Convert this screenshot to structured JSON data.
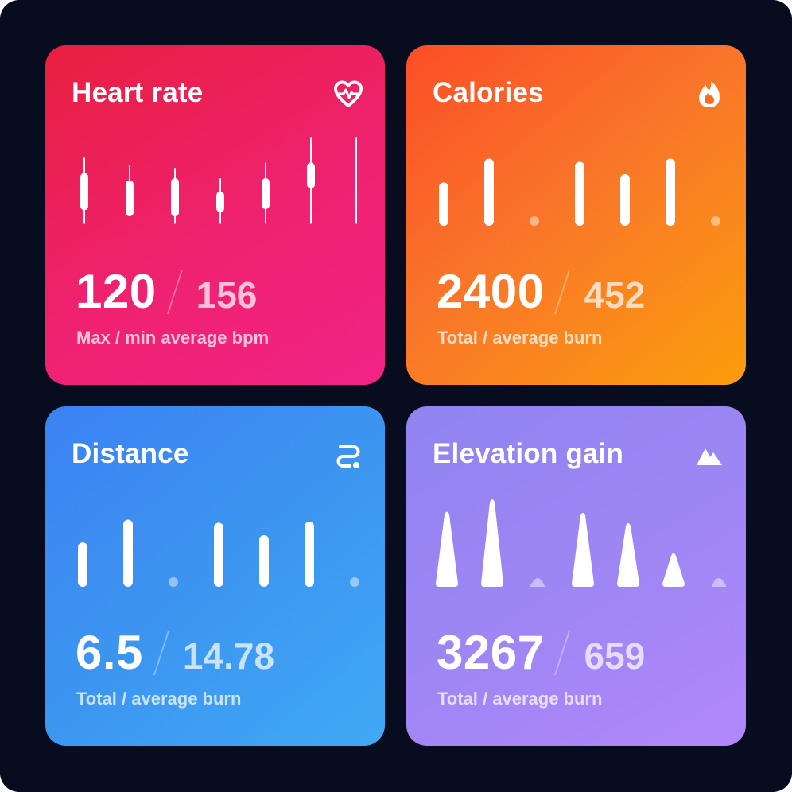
{
  "cards": [
    {
      "id": "heart",
      "title": "Heart rate",
      "icon": "heart-pulse-icon",
      "primary": "120",
      "secondary": "156",
      "label": "Max / min average bpm",
      "chart_type": "range",
      "ranges": [
        [
          0.2,
          0.82
        ],
        [
          0.27,
          0.72
        ],
        [
          0.3,
          0.82
        ],
        [
          0.4,
          0.82
        ],
        [
          0.25,
          0.82
        ],
        [
          0.0,
          0.82
        ],
        [
          0.0,
          0.82
        ]
      ],
      "boxes": [
        [
          0.35,
          0.71
        ],
        [
          0.42,
          0.77
        ],
        [
          0.4,
          0.77
        ],
        [
          0.53,
          0.73
        ],
        [
          0.4,
          0.7
        ],
        [
          0.25,
          0.5
        ],
        [
          null,
          null
        ]
      ]
    },
    {
      "id": "cal",
      "title": "Calories",
      "icon": "flame-icon",
      "primary": "2400",
      "secondary": "452",
      "label": "Total / average burn",
      "chart_type": "bar",
      "values": [
        0.42,
        0.65,
        0,
        0.62,
        0.5,
        0.65,
        0
      ]
    },
    {
      "id": "dist",
      "title": "Distance",
      "icon": "route-icon",
      "primary": "6.5",
      "secondary": "14.78",
      "label": "Total / average burn",
      "chart_type": "bar",
      "values": [
        0.43,
        0.65,
        0,
        0.62,
        0.5,
        0.63,
        0
      ]
    },
    {
      "id": "elev",
      "title": "Elevation gain",
      "icon": "mountain-icon",
      "primary": "3267",
      "secondary": "659",
      "label": "Total / average burn",
      "chart_type": "spike",
      "values": [
        0.73,
        0.85,
        0,
        0.72,
        0.62,
        0.33,
        0
      ]
    }
  ],
  "colors": {
    "background": "#070c1e",
    "heart": "#ec2160",
    "calories": "#fb6a22",
    "distance": "#3c8ff2",
    "elevation": "#9f86f6"
  }
}
